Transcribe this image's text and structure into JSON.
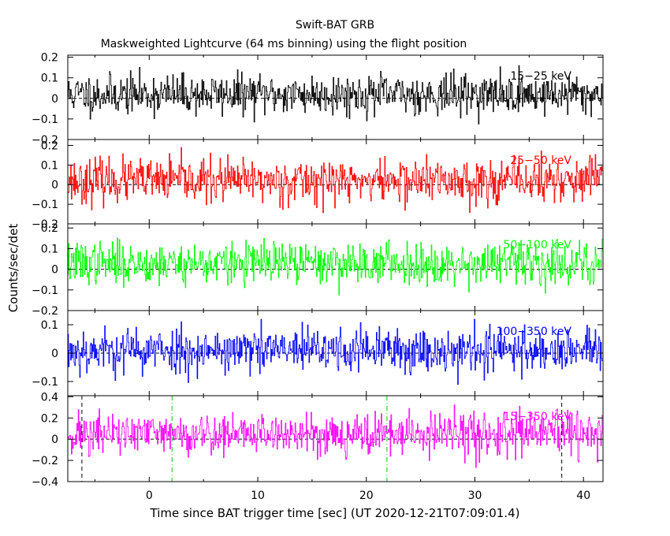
{
  "title": "Swift-BAT GRB",
  "subtitle": "Maskweighted Lightcurve (64 ms binning) using the flight position",
  "chart_data": {
    "type": "line",
    "title": "Swift-BAT GRB",
    "subtitle": "Maskweighted Lightcurve (64 ms binning) using the flight position",
    "xlabel": "Time since BAT trigger time [sec] (UT 2020-12-21T07:09:01.4)",
    "ylabel": "Counts/sec/det",
    "xlim": [
      -7.5,
      41.8
    ],
    "bin_width_sec": 0.064,
    "xticks": [
      0,
      10,
      20,
      30,
      40
    ],
    "panels": [
      {
        "name": "15-25 keV",
        "label": "15−25 keV",
        "color": "#000000",
        "ylim": [
          -0.2,
          0.21
        ],
        "yticks": [
          0.2,
          0.1,
          0,
          -0.1,
          -0.2
        ],
        "yticklabels": [
          "0.2",
          "0.1",
          "0",
          "−0.1",
          "−0.2"
        ],
        "mean": 0.02,
        "sigma": 0.048,
        "seed": 11
      },
      {
        "name": "25-50 keV",
        "label": "25−50 keV",
        "color": "#ff0000",
        "ylim": [
          -0.2,
          0.23
        ],
        "yticks": [
          0.2,
          0.1,
          0,
          -0.1,
          -0.2
        ],
        "yticklabels": [
          "0.2",
          "0.1",
          "0",
          "−0.1",
          "−0.2"
        ],
        "mean": 0.02,
        "sigma": 0.055,
        "seed": 23
      },
      {
        "name": "50-100 keV",
        "label": "50−100 keV",
        "color": "#00ff00",
        "ylim": [
          -0.2,
          0.22
        ],
        "yticks": [
          0.2,
          0.1,
          0,
          -0.1,
          -0.2
        ],
        "yticklabels": [
          "0.2",
          "0.1",
          "0",
          "−0.1",
          "−0.2"
        ],
        "mean": 0.03,
        "sigma": 0.05,
        "seed": 37
      },
      {
        "name": "100-350 keV",
        "label": "100−350 keV",
        "color": "#0000ff",
        "ylim": [
          -0.15,
          0.15
        ],
        "yticks": [
          0.1,
          0,
          -0.1
        ],
        "yticklabels": [
          "0.1",
          "0",
          "−0.1"
        ],
        "mean": 0.01,
        "sigma": 0.04,
        "seed": 53
      },
      {
        "name": "15-350 keV",
        "label": "15−350 keV",
        "color": "#ff00ff",
        "ylim": [
          -0.4,
          0.41
        ],
        "yticks": [
          0.4,
          0.2,
          0,
          -0.2,
          -0.4
        ],
        "yticklabels": [
          "0.4",
          "0.2",
          "0",
          "−0.2",
          "−0.4"
        ],
        "mean": 0.05,
        "sigma": 0.1,
        "seed": 71,
        "markers": [
          {
            "x": -6.2,
            "color": "#000000",
            "style": "dash"
          },
          {
            "x": 2.1,
            "color": "#00cc00",
            "style": "dashdot"
          },
          {
            "x": 21.9,
            "color": "#00cc00",
            "style": "dashdot"
          },
          {
            "x": 38.0,
            "color": "#000000",
            "style": "dash"
          }
        ]
      }
    ]
  }
}
